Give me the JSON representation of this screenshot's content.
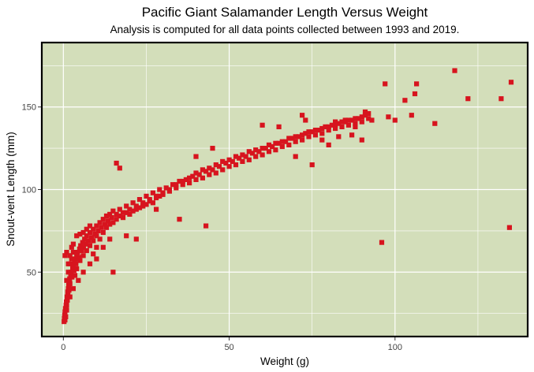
{
  "chart_data": {
    "type": "scatter",
    "title": "Pacific Giant Salamander Length Versus Weight",
    "subtitle": "Analysis is computed for all data points collected between 1993 and 2019.",
    "xlabel": "Weight (g)",
    "ylabel": "Snout-vent Length (mm)",
    "xlim": [
      -6.5,
      140
    ],
    "ylim": [
      11,
      189
    ],
    "x_ticks": [
      0,
      50,
      100
    ],
    "y_ticks": [
      50,
      100,
      150
    ],
    "x_tick_labels": [
      "0",
      "50",
      "100"
    ],
    "y_tick_labels": [
      "50",
      "100",
      "150"
    ],
    "grid": true,
    "legend": "none",
    "colors": {
      "panel_background": "#d3deba",
      "panel_border": "#000000",
      "grid": "#ffffff",
      "point": "#d7141e"
    },
    "points": [
      [
        0.2,
        20
      ],
      [
        0.3,
        22
      ],
      [
        0.4,
        24
      ],
      [
        0.5,
        21
      ],
      [
        0.5,
        26
      ],
      [
        0.6,
        28
      ],
      [
        0.7,
        23
      ],
      [
        0.8,
        30
      ],
      [
        0.9,
        32
      ],
      [
        1.0,
        27
      ],
      [
        1.1,
        35
      ],
      [
        1.2,
        33
      ],
      [
        1.3,
        38
      ],
      [
        1.4,
        36
      ],
      [
        1.5,
        40
      ],
      [
        1.6,
        42
      ],
      [
        1.7,
        39
      ],
      [
        1.8,
        44
      ],
      [
        1.9,
        46
      ],
      [
        2.0,
        43
      ],
      [
        2.2,
        48
      ],
      [
        2.4,
        50
      ],
      [
        2.6,
        47
      ],
      [
        2.8,
        52
      ],
      [
        3.0,
        54
      ],
      [
        3.2,
        51
      ],
      [
        3.4,
        56
      ],
      [
        3.6,
        58
      ],
      [
        3.8,
        55
      ],
      [
        4.0,
        60
      ],
      [
        4.3,
        62
      ],
      [
        4.6,
        59
      ],
      [
        4.9,
        64
      ],
      [
        5.2,
        66
      ],
      [
        5.5,
        63
      ],
      [
        5.8,
        68
      ],
      [
        6.1,
        65
      ],
      [
        6.4,
        70
      ],
      [
        6.7,
        67
      ],
      [
        7.0,
        72
      ],
      [
        7.5,
        69
      ],
      [
        8.0,
        74
      ],
      [
        8.5,
        71
      ],
      [
        9.0,
        76
      ],
      [
        9.5,
        73
      ],
      [
        10.0,
        78
      ],
      [
        10.5,
        75
      ],
      [
        11.0,
        80
      ],
      [
        11.5,
        77
      ],
      [
        12.0,
        82
      ],
      [
        12.5,
        79
      ],
      [
        13.0,
        84
      ],
      [
        13.5,
        81
      ],
      [
        14.0,
        85
      ],
      [
        14.5,
        83
      ],
      [
        15.0,
        87
      ],
      [
        16.0,
        85
      ],
      [
        17.0,
        88
      ],
      [
        18.0,
        86
      ],
      [
        19.0,
        90
      ],
      [
        20.0,
        88
      ],
      [
        21.0,
        92
      ],
      [
        22.0,
        90
      ],
      [
        23.0,
        94
      ],
      [
        24.0,
        92
      ],
      [
        25.0,
        96
      ],
      [
        26.0,
        94
      ],
      [
        27.0,
        98
      ],
      [
        28.0,
        96
      ],
      [
        29.0,
        100
      ],
      [
        30.0,
        98
      ],
      [
        31.0,
        101
      ],
      [
        32.0,
        99
      ],
      [
        33.0,
        103
      ],
      [
        34.0,
        101
      ],
      [
        35.0,
        105
      ],
      [
        36.0,
        103
      ],
      [
        37.0,
        106
      ],
      [
        38.0,
        104
      ],
      [
        39.0,
        108
      ],
      [
        40.0,
        106
      ],
      [
        41.0,
        109
      ],
      [
        42.0,
        107
      ],
      [
        43.0,
        111
      ],
      [
        44.0,
        109
      ],
      [
        45.0,
        112
      ],
      [
        46.0,
        110
      ],
      [
        47.0,
        114
      ],
      [
        48.0,
        112
      ],
      [
        49.0,
        116
      ],
      [
        50.0,
        114
      ],
      [
        51.0,
        117
      ],
      [
        52.0,
        115
      ],
      [
        53.0,
        119
      ],
      [
        54.0,
        117
      ],
      [
        55.0,
        120
      ],
      [
        56.0,
        118
      ],
      [
        57.0,
        122
      ],
      [
        58.0,
        120
      ],
      [
        59.0,
        123
      ],
      [
        60.0,
        121
      ],
      [
        61.0,
        125
      ],
      [
        62.0,
        123
      ],
      [
        63.0,
        126
      ],
      [
        64.0,
        124
      ],
      [
        65.0,
        128
      ],
      [
        66.0,
        126
      ],
      [
        67.0,
        129
      ],
      [
        68.0,
        127
      ],
      [
        69.0,
        131
      ],
      [
        70.0,
        129
      ],
      [
        71.0,
        132
      ],
      [
        72.0,
        130
      ],
      [
        73.0,
        134
      ],
      [
        74.0,
        132
      ],
      [
        75.0,
        135
      ],
      [
        76.0,
        133
      ],
      [
        77.0,
        136
      ],
      [
        78.0,
        134
      ],
      [
        79.0,
        138
      ],
      [
        80.0,
        136
      ],
      [
        81.0,
        139
      ],
      [
        82.0,
        137
      ],
      [
        83.0,
        140
      ],
      [
        84.0,
        138
      ],
      [
        85.0,
        141
      ],
      [
        86.0,
        139
      ],
      [
        87.0,
        142
      ],
      [
        88.0,
        140
      ],
      [
        89.0,
        143
      ],
      [
        90.0,
        141
      ],
      [
        91.0,
        145
      ],
      [
        92.0,
        143
      ],
      [
        1.0,
        45
      ],
      [
        1.5,
        50
      ],
      [
        2.0,
        55
      ],
      [
        2.5,
        58
      ],
      [
        3.0,
        62
      ],
      [
        3.5,
        48
      ],
      [
        4.0,
        52
      ],
      [
        5.0,
        57
      ],
      [
        6.0,
        60
      ],
      [
        7.0,
        63
      ],
      [
        8.0,
        66
      ],
      [
        9.0,
        69
      ],
      [
        10.0,
        72
      ],
      [
        11.0,
        70
      ],
      [
        12.0,
        74
      ],
      [
        13.0,
        77
      ],
      [
        14.0,
        79
      ],
      [
        15.0,
        80
      ],
      [
        16.0,
        82
      ],
      [
        17.0,
        84
      ],
      [
        18.0,
        83
      ],
      [
        19.0,
        86
      ],
      [
        20.0,
        85
      ],
      [
        21.0,
        87
      ],
      [
        22.0,
        88
      ],
      [
        23.0,
        89
      ],
      [
        24.0,
        90
      ],
      [
        25.0,
        91
      ],
      [
        26.0,
        93
      ],
      [
        27.0,
        92
      ],
      [
        28.0,
        95
      ],
      [
        29.0,
        96
      ],
      [
        30.0,
        97
      ],
      [
        32.0,
        100
      ],
      [
        34.0,
        103
      ],
      [
        36.0,
        105
      ],
      [
        38.0,
        107
      ],
      [
        40.0,
        110
      ],
      [
        42.0,
        112
      ],
      [
        44.0,
        113
      ],
      [
        46.0,
        115
      ],
      [
        48.0,
        117
      ],
      [
        50.0,
        118
      ],
      [
        52.0,
        120
      ],
      [
        54.0,
        121
      ],
      [
        56.0,
        123
      ],
      [
        58.0,
        124
      ],
      [
        60.0,
        125
      ],
      [
        62.0,
        127
      ],
      [
        64.0,
        128
      ],
      [
        66.0,
        129
      ],
      [
        68.0,
        131
      ],
      [
        70.0,
        132
      ],
      [
        72.0,
        133
      ],
      [
        74.0,
        135
      ],
      [
        76.0,
        136
      ],
      [
        78.0,
        137
      ],
      [
        80.0,
        138
      ],
      [
        82.0,
        139
      ],
      [
        84.0,
        141
      ],
      [
        86.0,
        142
      ],
      [
        88.0,
        143
      ],
      [
        90.0,
        144
      ],
      [
        0.5,
        60
      ],
      [
        1.0,
        62
      ],
      [
        1.5,
        55
      ],
      [
        2.0,
        60
      ],
      [
        2.5,
        65
      ],
      [
        3.0,
        67
      ],
      [
        4.0,
        72
      ],
      [
        5.0,
        73
      ],
      [
        6.0,
        74
      ],
      [
        7.0,
        76
      ],
      [
        8.0,
        78
      ],
      [
        9.0,
        61
      ],
      [
        10.0,
        65
      ],
      [
        3.0,
        40
      ],
      [
        2.0,
        35
      ],
      [
        1.0,
        30
      ],
      [
        4.5,
        45
      ],
      [
        6.0,
        50
      ],
      [
        8.0,
        55
      ],
      [
        10.0,
        58
      ],
      [
        12.0,
        65
      ],
      [
        14.0,
        70
      ],
      [
        16.0,
        116
      ],
      [
        17.0,
        113
      ],
      [
        15.0,
        50
      ],
      [
        19.0,
        72
      ],
      [
        22.0,
        70
      ],
      [
        43.0,
        78
      ],
      [
        35.0,
        82
      ],
      [
        28.0,
        88
      ],
      [
        40.0,
        120
      ],
      [
        45.0,
        125
      ],
      [
        60.0,
        139
      ],
      [
        65.0,
        138
      ],
      [
        70.0,
        120
      ],
      [
        75.0,
        115
      ],
      [
        72.0,
        145
      ],
      [
        73.0,
        142
      ],
      [
        78.0,
        130
      ],
      [
        82.0,
        141
      ],
      [
        85.0,
        142
      ],
      [
        88.0,
        138
      ],
      [
        91.0,
        147
      ],
      [
        92.0,
        146
      ],
      [
        93.0,
        142
      ],
      [
        87.0,
        133
      ],
      [
        90.0,
        130
      ],
      [
        83.0,
        132
      ],
      [
        80.0,
        127
      ],
      [
        96.0,
        68
      ],
      [
        97.0,
        164
      ],
      [
        98.0,
        144
      ],
      [
        100.0,
        142
      ],
      [
        103.0,
        154
      ],
      [
        105.0,
        145
      ],
      [
        106.0,
        158
      ],
      [
        106.5,
        164
      ],
      [
        112.0,
        140
      ],
      [
        118.0,
        172
      ],
      [
        122.0,
        155
      ],
      [
        132.0,
        155
      ],
      [
        135.0,
        165
      ],
      [
        134.5,
        77
      ]
    ]
  }
}
